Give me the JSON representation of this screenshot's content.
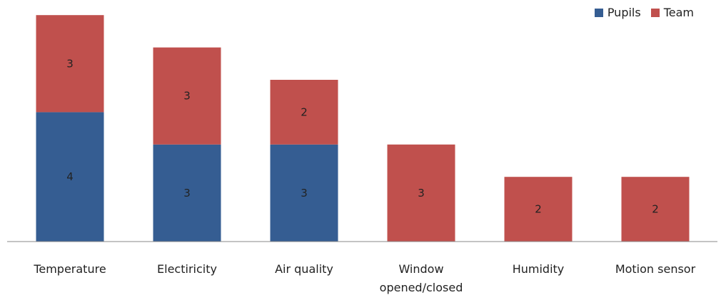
{
  "chart_data": {
    "type": "bar",
    "stacked": true,
    "categories": [
      "Temperature",
      "Electiricity",
      "Air quality",
      "Window opened/closed",
      "Humidity",
      "Motion sensor"
    ],
    "series": [
      {
        "name": "Pupils",
        "color": "#355d92",
        "values": [
          4,
          3,
          3,
          0,
          0,
          0
        ]
      },
      {
        "name": "Team",
        "color": "#c0504d",
        "values": [
          3,
          3,
          2,
          3,
          2,
          2
        ]
      }
    ],
    "ylim": [
      0,
      7
    ],
    "grid": false,
    "legend_position": "top-right",
    "title": "",
    "xlabel": "",
    "ylabel": ""
  }
}
